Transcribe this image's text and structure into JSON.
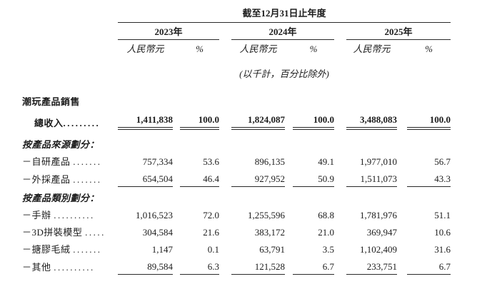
{
  "doc": {
    "period_title": "截至12月31日止年度",
    "unit_note": "(以千計，百分比除外)",
    "years": [
      "2023年",
      "2024年",
      "2025年"
    ],
    "col_header_currency": "人民幣元",
    "col_header_percent": "%",
    "rows": [
      {
        "type": "group",
        "label": "潮玩產品銷售"
      },
      {
        "type": "total",
        "label": "總收入",
        "dots": ".........",
        "values": [
          "1,411,838",
          "100.0",
          "1,824,087",
          "100.0",
          "3,488,083",
          "100.0"
        ]
      },
      {
        "type": "section",
        "label": "按產品來源劃分："
      },
      {
        "type": "data",
        "label": "－自研產品 ",
        "dots": ".......",
        "values": [
          "757,334",
          "53.6",
          "896,135",
          "49.1",
          "1,977,010",
          "56.7"
        ]
      },
      {
        "type": "data",
        "label": "－外採產品 ",
        "dots": ".......",
        "values": [
          "654,504",
          "46.4",
          "927,952",
          "50.9",
          "1,511,073",
          "43.3"
        ]
      },
      {
        "type": "section",
        "label": "按產品類別劃分："
      },
      {
        "type": "data",
        "label": "－手辦 ",
        "dots": "..........",
        "values": [
          "1,016,523",
          "72.0",
          "1,255,596",
          "68.8",
          "1,781,976",
          "51.1"
        ]
      },
      {
        "type": "data",
        "label": "－3D拼裝模型 ",
        "dots": ".....",
        "values": [
          "304,584",
          "21.6",
          "383,172",
          "21.0",
          "369,947",
          "10.6"
        ]
      },
      {
        "type": "data",
        "label": "－搪膠毛絨 ",
        "dots": ".......",
        "values": [
          "1,147",
          "0.1",
          "63,791",
          "3.5",
          "1,102,409",
          "31.6"
        ]
      },
      {
        "type": "data",
        "label": "－其他 ",
        "dots": "..........",
        "values": [
          "89,584",
          "6.3",
          "121,528",
          "6.7",
          "233,751",
          "6.7"
        ]
      }
    ]
  }
}
